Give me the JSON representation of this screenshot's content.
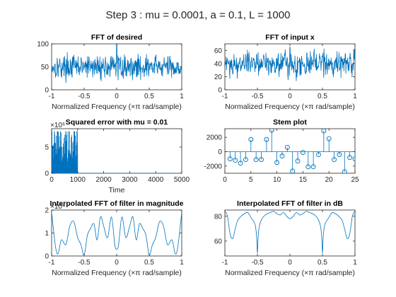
{
  "figure": {
    "suptitle": "Step 3 : mu = 0.0001, a = 0.1, L = 1000",
    "colors": {
      "series": "#0072BD",
      "axes": "#262626",
      "background": "#ffffff"
    }
  },
  "chart_data": [
    {
      "id": "fft-desired",
      "type": "line",
      "title": "FFT of desired",
      "xlabel": "Normalized Frequency (×π rad/sample)",
      "ylabel": "",
      "xlim": [
        -1,
        1
      ],
      "ylim": [
        0,
        100
      ],
      "xticks": [
        -1,
        -0.5,
        0,
        0.5,
        1
      ],
      "xtick_labels": [
        "-1",
        "-0.5",
        "0",
        "0.5",
        "1"
      ],
      "yticks": [
        0,
        50,
        100
      ],
      "ytick_labels": [
        "0",
        "50",
        "100"
      ],
      "noise": {
        "n": 400,
        "mean": 50,
        "spread": 18,
        "peak_x": 0,
        "peak_y": 100,
        "min": 2,
        "max": 90
      }
    },
    {
      "id": "fft-input",
      "type": "line",
      "title": "FFT of input x",
      "xlabel": "Normalized Frequency (×π rad/sample)",
      "ylabel": "",
      "xlim": [
        -1,
        1
      ],
      "ylim": [
        0,
        70
      ],
      "xticks": [
        -1,
        -0.5,
        0,
        0.5,
        1
      ],
      "xtick_labels": [
        "-1",
        "-0.5",
        "0",
        "0.5",
        "1"
      ],
      "yticks": [
        0,
        20,
        40,
        60
      ],
      "ytick_labels": [
        "0",
        "20",
        "40",
        "60"
      ],
      "noise": {
        "n": 400,
        "mean": 40,
        "spread": 14,
        "peak_x": 0,
        "peak_y": 65,
        "min": 4,
        "max": 68
      }
    },
    {
      "id": "squared-error",
      "type": "area",
      "title": "Squared error with mu = 0.01",
      "xlabel": "Time",
      "ylabel": "",
      "exponent_label": "×10⁶",
      "xlim": [
        0,
        5000
      ],
      "ylim": [
        0,
        8.5
      ],
      "xticks": [
        0,
        1000,
        2000,
        3000,
        4000,
        5000
      ],
      "xtick_labels": [
        "0",
        "1000",
        "2000",
        "3000",
        "4000",
        "5000"
      ],
      "yticks": [
        0,
        5
      ],
      "ytick_labels": [
        "0",
        "5"
      ],
      "burst": {
        "x_start": 0,
        "x_end": 1000,
        "mean": 2.8,
        "max": 8.0
      }
    },
    {
      "id": "stem-plot",
      "type": "scatter",
      "title": "Stem plot",
      "xlabel": "",
      "ylabel": "",
      "xlim": [
        0,
        25
      ],
      "ylim": [
        -3000,
        3200
      ],
      "xticks": [
        0,
        5,
        10,
        15,
        20,
        25
      ],
      "xtick_labels": [
        "0",
        "5",
        "10",
        "15",
        "20",
        "25"
      ],
      "yticks": [
        -2000,
        0,
        2000
      ],
      "ytick_labels": [
        "-2000",
        "0",
        "2000"
      ],
      "x": [
        1,
        2,
        3,
        4,
        5,
        6,
        7,
        8,
        9,
        10,
        11,
        12,
        13,
        14,
        15,
        16,
        17,
        18,
        19,
        20,
        21,
        22,
        23,
        24,
        25
      ],
      "y": [
        -1000,
        -1200,
        -1600,
        -1100,
        1700,
        -1100,
        -1100,
        1700,
        3000,
        -1500,
        -600,
        600,
        -2700,
        -1300,
        -100,
        -2100,
        -2100,
        -400,
        2900,
        1800,
        -1100,
        -400,
        -2800,
        -800,
        -1000
      ]
    },
    {
      "id": "interp-mag",
      "type": "line",
      "title": "Interpolated FFT of filter in magnitude",
      "xlabel": "Normalized Frequency (×π rad/sample)",
      "ylabel": "",
      "exponent_label": "×10⁴",
      "xlim": [
        -1,
        1
      ],
      "ylim": [
        0,
        2
      ],
      "xticks": [
        -1,
        -0.5,
        0,
        0.5,
        1
      ],
      "xtick_labels": [
        "-1",
        "-0.5",
        "0",
        "0.5",
        "1"
      ],
      "yticks": [
        0,
        1,
        2
      ],
      "ytick_labels": [
        "0",
        "1",
        "2"
      ],
      "x": [
        -1,
        -0.94,
        -0.9,
        -0.85,
        -0.78,
        -0.72,
        -0.66,
        -0.6,
        -0.55,
        -0.5,
        -0.45,
        -0.4,
        -0.35,
        -0.3,
        -0.25,
        -0.2,
        -0.14,
        -0.08,
        -0.03,
        0,
        0.03,
        0.08,
        0.14,
        0.2,
        0.25,
        0.3,
        0.35,
        0.4,
        0.45,
        0.5,
        0.55,
        0.6,
        0.66,
        0.72,
        0.78,
        0.85,
        0.9,
        0.94,
        1
      ],
      "y": [
        1.9,
        0.4,
        0.1,
        0.7,
        0.5,
        1.3,
        1.5,
        0.8,
        0.5,
        0.05,
        0.9,
        1.2,
        1.4,
        0.7,
        1.7,
        1.3,
        0.8,
        1.7,
        0.5,
        0.3,
        0.5,
        1.7,
        0.8,
        1.3,
        1.7,
        0.7,
        1.4,
        1.2,
        0.9,
        0.05,
        0.5,
        0.8,
        1.5,
        1.3,
        0.5,
        0.7,
        0.1,
        0.4,
        1.9
      ]
    },
    {
      "id": "interp-db",
      "type": "line",
      "title": "Interpolated FFT of filter in dB",
      "xlabel": "Normalized Frequency (×π rad/sample)",
      "ylabel": "",
      "xlim": [
        -1,
        1
      ],
      "ylim": [
        48,
        85
      ],
      "xticks": [
        -1,
        -0.5,
        0,
        0.5,
        1
      ],
      "xtick_labels": [
        "-1",
        "-0.5",
        "0",
        "0.5",
        "1"
      ],
      "yticks": [
        60,
        80
      ],
      "ytick_labels": [
        "60",
        "80"
      ],
      "x": [
        -1,
        -0.96,
        -0.92,
        -0.88,
        -0.84,
        -0.8,
        -0.75,
        -0.7,
        -0.65,
        -0.6,
        -0.56,
        -0.53,
        -0.51,
        -0.5,
        -0.49,
        -0.47,
        -0.44,
        -0.4,
        -0.35,
        -0.3,
        -0.25,
        -0.2,
        -0.15,
        -0.1,
        -0.05,
        0,
        0.05,
        0.1,
        0.15,
        0.2,
        0.25,
        0.3,
        0.35,
        0.4,
        0.44,
        0.47,
        0.49,
        0.5,
        0.51,
        0.53,
        0.56,
        0.6,
        0.65,
        0.7,
        0.75,
        0.8,
        0.84,
        0.88,
        0.92,
        0.96,
        1
      ],
      "y": [
        84,
        80,
        66,
        62,
        70,
        77,
        80,
        82,
        83,
        79,
        76,
        72,
        62,
        50,
        62,
        72,
        77,
        80,
        82,
        83,
        84,
        82,
        81,
        83,
        80,
        78,
        80,
        83,
        81,
        82,
        84,
        83,
        82,
        80,
        77,
        72,
        62,
        50,
        62,
        72,
        76,
        79,
        83,
        82,
        80,
        77,
        70,
        62,
        66,
        80,
        84
      ]
    }
  ]
}
